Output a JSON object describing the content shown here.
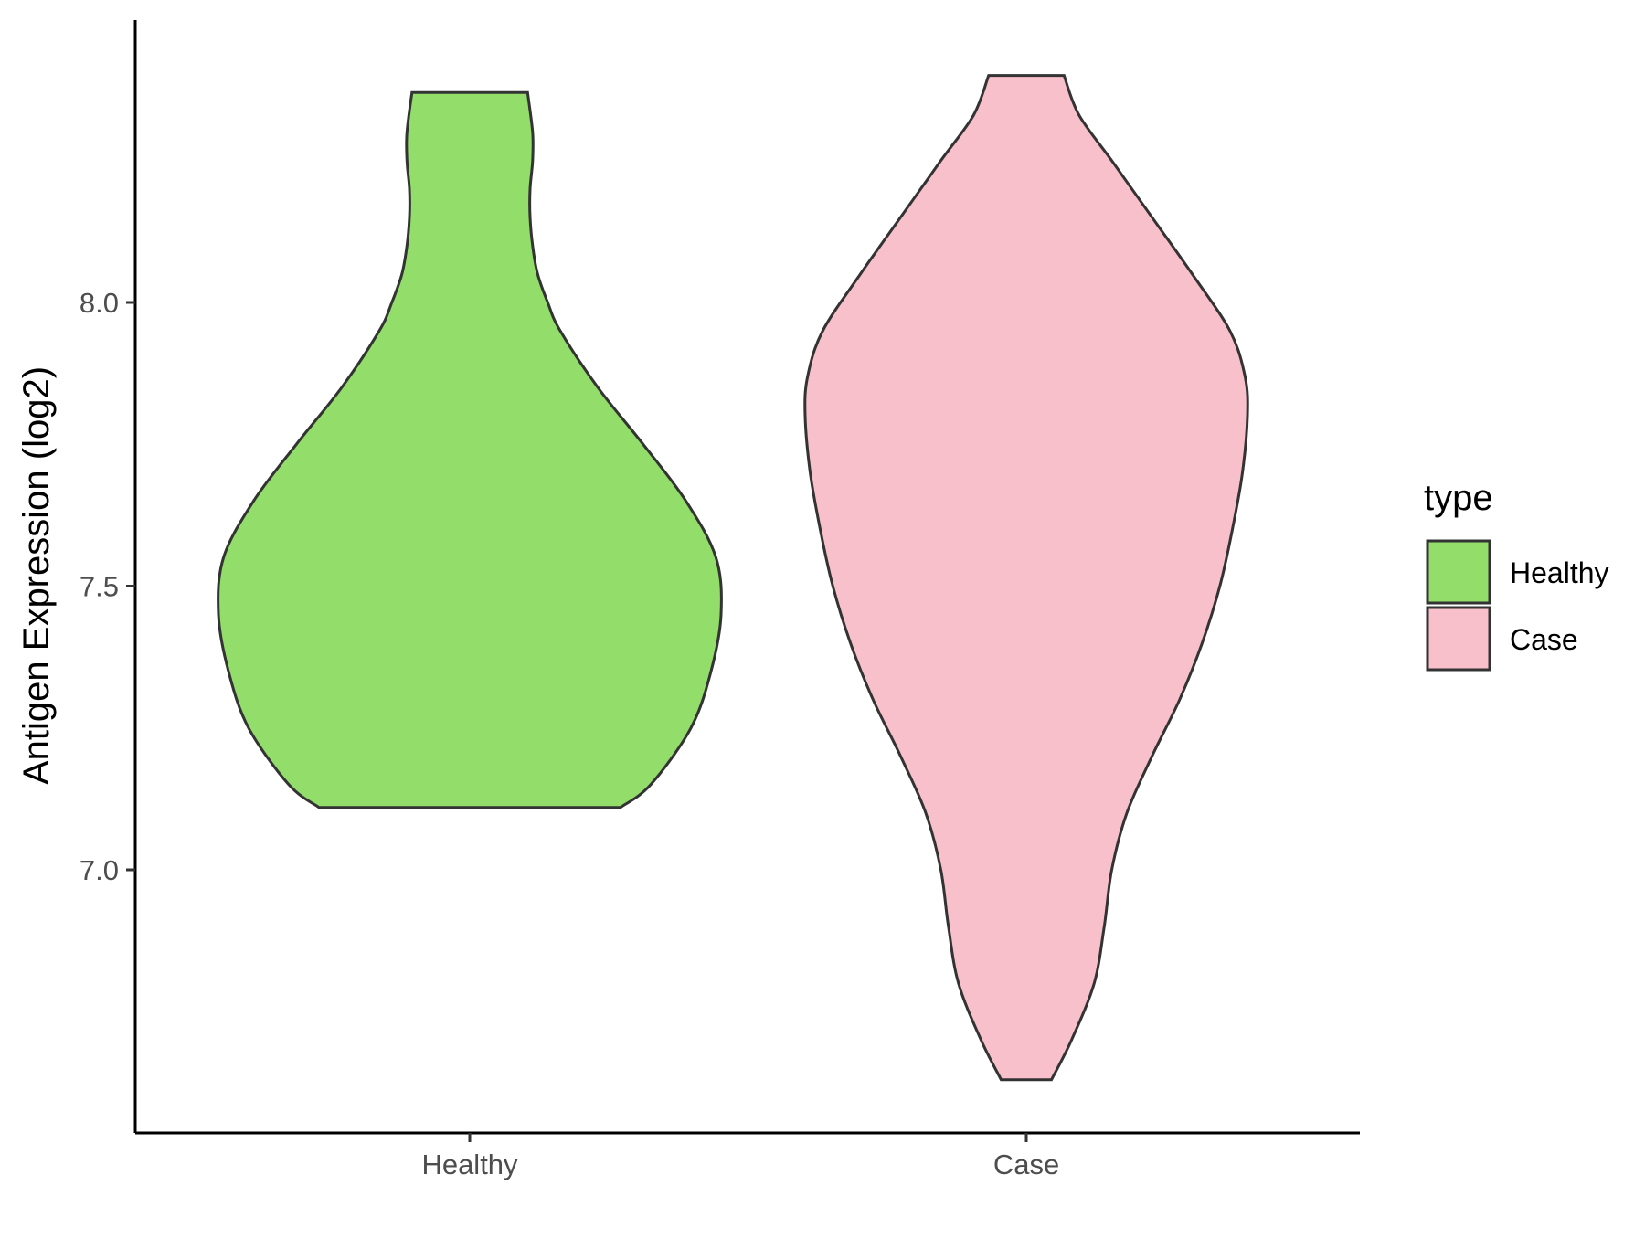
{
  "chart_data": {
    "type": "violin",
    "title": "",
    "xlabel": "",
    "ylabel": "Antigen Expression (log2)",
    "categories": [
      "Healthy",
      "Case"
    ],
    "yticks": [
      7.0,
      7.5,
      8.0
    ],
    "ytick_labels": [
      "7.0",
      "7.5",
      "8.0"
    ],
    "ylim": [
      6.57,
      8.5
    ],
    "grid": false,
    "legend": {
      "title": "type",
      "position": "right",
      "entries": [
        {
          "label": "Healthy",
          "color": "#93dd6b"
        },
        {
          "label": "Case",
          "color": "#f8c0cb"
        }
      ]
    },
    "series": [
      {
        "category": "Healthy",
        "color": "#93dd6b",
        "min": 7.11,
        "max": 8.37,
        "density": [
          {
            "y": 7.11,
            "w": 0.6
          },
          {
            "y": 7.15,
            "w": 0.72
          },
          {
            "y": 7.25,
            "w": 0.88
          },
          {
            "y": 7.35,
            "w": 0.96
          },
          {
            "y": 7.45,
            "w": 1.0
          },
          {
            "y": 7.55,
            "w": 0.98
          },
          {
            "y": 7.65,
            "w": 0.86
          },
          {
            "y": 7.75,
            "w": 0.69
          },
          {
            "y": 7.85,
            "w": 0.51
          },
          {
            "y": 7.95,
            "w": 0.36
          },
          {
            "y": 8.0,
            "w": 0.31
          },
          {
            "y": 8.05,
            "w": 0.27
          },
          {
            "y": 8.1,
            "w": 0.25
          },
          {
            "y": 8.15,
            "w": 0.24
          },
          {
            "y": 8.2,
            "w": 0.24
          },
          {
            "y": 8.25,
            "w": 0.25
          },
          {
            "y": 8.3,
            "w": 0.25
          },
          {
            "y": 8.37,
            "w": 0.23
          }
        ]
      },
      {
        "category": "Case",
        "color": "#f8c0cb",
        "min": 6.63,
        "max": 8.4,
        "density": [
          {
            "y": 6.63,
            "w": 0.1
          },
          {
            "y": 6.7,
            "w": 0.18
          },
          {
            "y": 6.8,
            "w": 0.27
          },
          {
            "y": 6.9,
            "w": 0.31
          },
          {
            "y": 7.0,
            "w": 0.34
          },
          {
            "y": 7.1,
            "w": 0.4
          },
          {
            "y": 7.2,
            "w": 0.5
          },
          {
            "y": 7.3,
            "w": 0.61
          },
          {
            "y": 7.4,
            "w": 0.7
          },
          {
            "y": 7.5,
            "w": 0.77
          },
          {
            "y": 7.6,
            "w": 0.82
          },
          {
            "y": 7.7,
            "w": 0.86
          },
          {
            "y": 7.8,
            "w": 0.88
          },
          {
            "y": 7.87,
            "w": 0.87
          },
          {
            "y": 7.95,
            "w": 0.81
          },
          {
            "y": 8.05,
            "w": 0.66
          },
          {
            "y": 8.15,
            "w": 0.5
          },
          {
            "y": 8.25,
            "w": 0.34
          },
          {
            "y": 8.33,
            "w": 0.21
          },
          {
            "y": 8.4,
            "w": 0.15
          }
        ]
      }
    ]
  }
}
